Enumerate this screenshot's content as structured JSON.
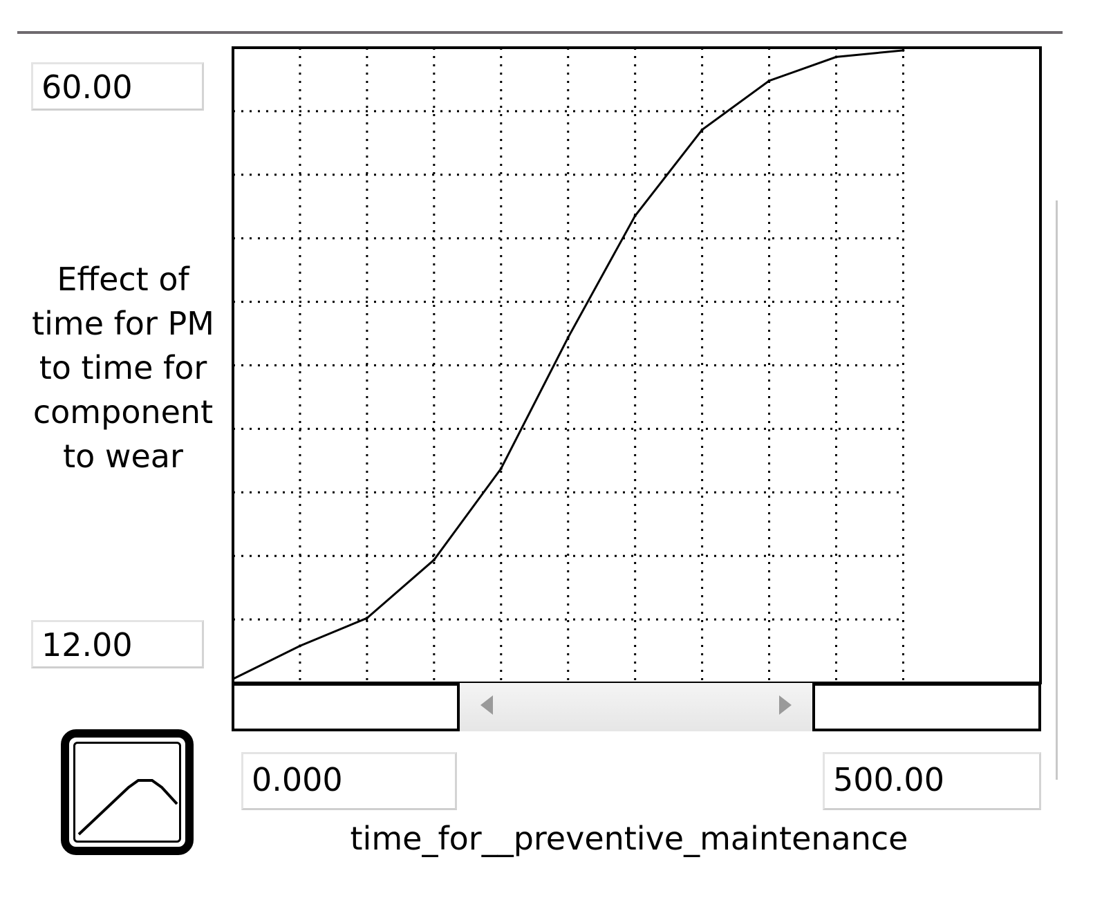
{
  "chart_data": {
    "type": "line",
    "title": "",
    "xlabel": "time_for__preventive_maintenance",
    "ylabel": "Effect of time for PM to time for component to wear",
    "xlim": [
      0,
      500
    ],
    "ylim": [
      12,
      60
    ],
    "x_grid_max": 415,
    "grid": true,
    "x": [
      0,
      41.5,
      83,
      124.5,
      166,
      207.5,
      249,
      290.5,
      332,
      373.5,
      415
    ],
    "y": [
      12.3,
      14.8,
      16.9,
      21.3,
      28.2,
      38.1,
      47.3,
      53.8,
      57.5,
      59.3,
      59.8
    ]
  },
  "fields": {
    "y_max": "60.00",
    "y_min": "12.00",
    "x_min": "0.000",
    "x_max": "500.00"
  },
  "labels": {
    "y_axis": "Effect of time for PM to time for component to wear",
    "x_axis": "time_for__preventive_maintenance"
  },
  "icons": {
    "graph": "graph-function-icon",
    "scroll_left": "arrow-left-icon",
    "scroll_right": "arrow-right-icon"
  },
  "colors": {
    "curve": "#000000",
    "grid": "#000000",
    "background": "#ffffff"
  }
}
